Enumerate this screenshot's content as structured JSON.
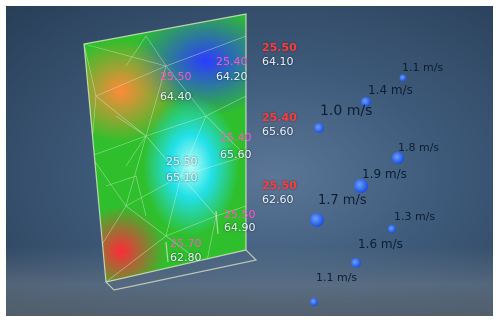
{
  "sensors_on_wall": [
    {
      "temp": "25.50",
      "humidity": "64.10"
    },
    {
      "temp": "25.50",
      "humidity": "64.40"
    },
    {
      "temp": "25.40",
      "humidity": "64.20"
    },
    {
      "temp": "25.40",
      "humidity": "65.60"
    },
    {
      "temp": "25.50",
      "humidity": "65.10"
    },
    {
      "temp": "25.40",
      "humidity": "65.60"
    },
    {
      "temp": "25.50",
      "humidity": "62.60"
    },
    {
      "temp": "25.70",
      "humidity": "62.80"
    },
    {
      "temp": "25.50",
      "humidity": "64.90"
    }
  ],
  "airflow_labels": [
    "1.1 m/s",
    "1.4 m/s",
    "1.0 m/s",
    "1.8 m/s",
    "1.9 m/s",
    "1.7 m/s",
    "1.3 m/s",
    "1.6 m/s",
    "1.1 m/s"
  ],
  "colors": {
    "background": "#3e5a7a",
    "sensor_temp": "#ff3b3b",
    "sensor_humidity": "#e8f3ff",
    "airflow_node": "#2a6dff",
    "airflow_text": "#0c1d33"
  }
}
